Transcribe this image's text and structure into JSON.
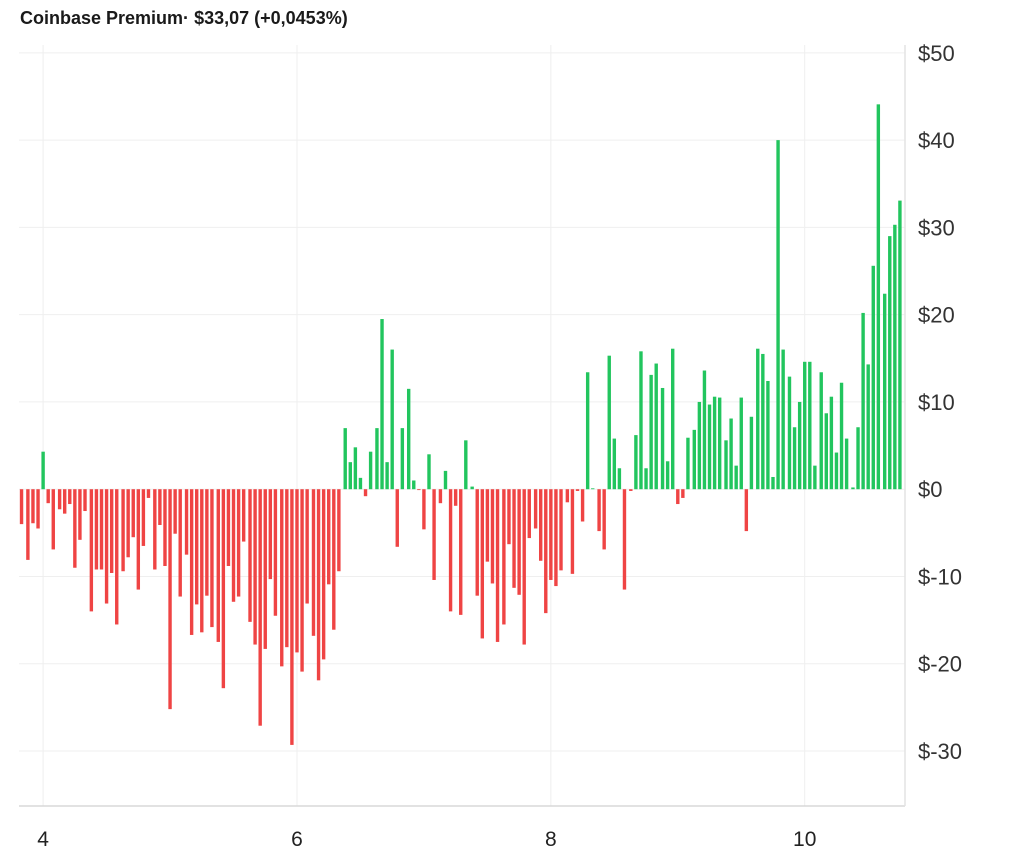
{
  "header": {
    "title": "Coinbase Premium",
    "separator": "·",
    "last_value": "$33,07",
    "change": "(+0,0453%)"
  },
  "chart_data": {
    "type": "bar",
    "title": "Coinbase Premium",
    "xlabel": "",
    "ylabel": "",
    "xlim": [
      3.81,
      10.79
    ],
    "ylim": [
      -36.3,
      50.9
    ],
    "x_ticks": [
      4,
      6,
      8,
      10
    ],
    "x_tick_labels": [
      "4",
      "6",
      "8",
      "10"
    ],
    "y_ticks": [
      -30,
      -20,
      -10,
      0,
      10,
      20,
      30,
      40,
      50
    ],
    "y_tick_labels": [
      "$-30",
      "$-20",
      "$-10",
      "$0",
      "$10",
      "$20",
      "$30",
      "$40",
      "$50"
    ],
    "y_axis_side": "right",
    "grid": true,
    "colors": {
      "positive": "#22c55e",
      "negative": "#ef4444"
    },
    "x": [
      3.83,
      3.88,
      3.92,
      3.96,
      4.0,
      4.04,
      4.08,
      4.13,
      4.17,
      4.21,
      4.25,
      4.29,
      4.33,
      4.38,
      4.42,
      4.46,
      4.5,
      4.54,
      4.58,
      4.63,
      4.67,
      4.71,
      4.75,
      4.79,
      4.83,
      4.88,
      4.92,
      4.96,
      5.0,
      5.04,
      5.08,
      5.13,
      5.17,
      5.21,
      5.25,
      5.29,
      5.33,
      5.38,
      5.42,
      5.46,
      5.5,
      5.54,
      5.58,
      5.63,
      5.67,
      5.71,
      5.75,
      5.79,
      5.83,
      5.88,
      5.92,
      5.96,
      6.0,
      6.04,
      6.08,
      6.13,
      6.17,
      6.21,
      6.25,
      6.29,
      6.33,
      6.38,
      6.42,
      6.46,
      6.5,
      6.54,
      6.58,
      6.63,
      6.67,
      6.71,
      6.75,
      6.79,
      6.83,
      6.88,
      6.92,
      6.96,
      7.0,
      7.04,
      7.08,
      7.13,
      7.17,
      7.21,
      7.25,
      7.29,
      7.33,
      7.38,
      7.42,
      7.46,
      7.5,
      7.54,
      7.58,
      7.63,
      7.67,
      7.71,
      7.75,
      7.79,
      7.83,
      7.88,
      7.92,
      7.96,
      8.0,
      8.04,
      8.08,
      8.13,
      8.17,
      8.21,
      8.25,
      8.29,
      8.33,
      8.38,
      8.42,
      8.46,
      8.5,
      8.54,
      8.58,
      8.63,
      8.67,
      8.71,
      8.75,
      8.79,
      8.83,
      8.88,
      8.92,
      8.96,
      9.0,
      9.04,
      9.08,
      9.13,
      9.17,
      9.21,
      9.25,
      9.29,
      9.33,
      9.38,
      9.42,
      9.46,
      9.5,
      9.54,
      9.58,
      9.63,
      9.67,
      9.71,
      9.75,
      9.79,
      9.83,
      9.88,
      9.92,
      9.96,
      10.0,
      10.04,
      10.08,
      10.13,
      10.17,
      10.21,
      10.25,
      10.29,
      10.33,
      10.38,
      10.42,
      10.46,
      10.5,
      10.54,
      10.58,
      10.63,
      10.67,
      10.71,
      10.75
    ],
    "values": [
      -4.0,
      -8.1,
      -3.9,
      -4.5,
      4.3,
      -1.6,
      -6.9,
      -2.3,
      -2.8,
      -1.7,
      -9.0,
      -5.8,
      -2.5,
      -14.0,
      -9.2,
      -9.2,
      -13.1,
      -9.6,
      -15.5,
      -9.4,
      -7.8,
      -5.5,
      -11.5,
      -6.5,
      -1.0,
      -9.2,
      -4.1,
      -8.8,
      -25.2,
      -5.1,
      -12.3,
      -7.5,
      -16.7,
      -13.2,
      -16.4,
      -12.2,
      -15.8,
      -17.5,
      -22.8,
      -8.8,
      -12.9,
      -12.3,
      -6.0,
      -15.2,
      -17.8,
      -27.1,
      -18.3,
      -10.3,
      -14.5,
      -20.3,
      -18.1,
      -29.3,
      -18.7,
      -20.9,
      -13.1,
      -16.8,
      -21.9,
      -19.5,
      -10.9,
      -16.1,
      -9.4,
      7.0,
      3.1,
      4.8,
      1.3,
      -0.8,
      4.3,
      7.0,
      19.5,
      3.1,
      16.0,
      -6.6,
      7.0,
      11.5,
      1.0,
      -0.1,
      -4.6,
      4.0,
      -10.4,
      -1.6,
      2.1,
      -14.0,
      -1.9,
      -14.4,
      5.6,
      0.3,
      -12.2,
      -17.1,
      -8.3,
      -10.8,
      -17.5,
      -15.5,
      -6.3,
      -11.3,
      -12.1,
      -17.8,
      -5.6,
      -4.5,
      -8.2,
      -14.2,
      -10.4,
      -11.1,
      -9.3,
      -1.5,
      -9.7,
      -0.2,
      -3.7,
      13.4,
      0.1,
      -4.8,
      -6.9,
      15.3,
      5.8,
      2.4,
      -11.5,
      -0.2,
      6.2,
      15.8,
      2.4,
      13.1,
      14.4,
      11.6,
      3.2,
      16.1,
      -1.7,
      -1.0,
      5.9,
      6.8,
      10.0,
      13.6,
      9.7,
      10.6,
      10.5,
      5.6,
      8.1,
      2.7,
      10.5,
      -4.8,
      8.3,
      16.1,
      15.5,
      12.4,
      1.4,
      40.0,
      16.0,
      12.9,
      7.1,
      10.0,
      14.6,
      14.6,
      2.7,
      13.4,
      8.7,
      10.6,
      4.2,
      12.2,
      5.8,
      0.2,
      7.1,
      20.2,
      14.3,
      25.6,
      44.1,
      22.4,
      29.0,
      30.3,
      33.07
    ]
  }
}
